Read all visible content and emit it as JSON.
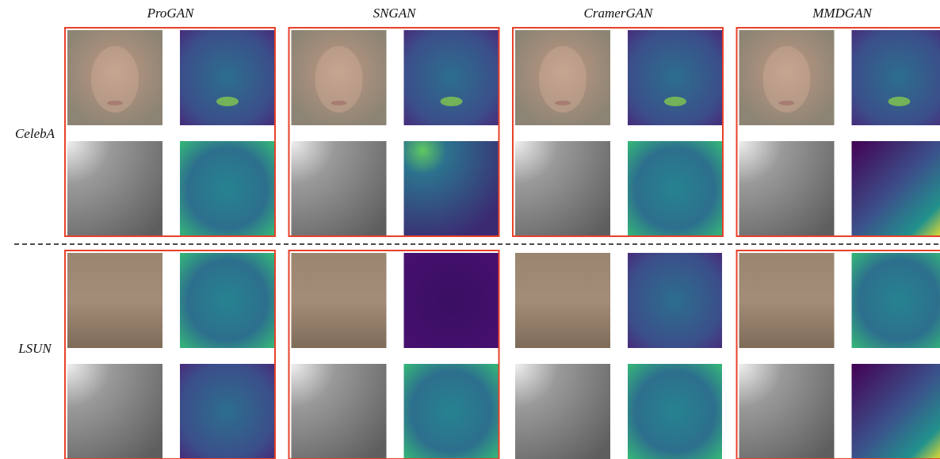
{
  "columns": [
    "ProGAN",
    "SNGAN",
    "CramerGAN",
    "MMDGAN"
  ],
  "rows": [
    "CelebA",
    "LSUN"
  ]
}
